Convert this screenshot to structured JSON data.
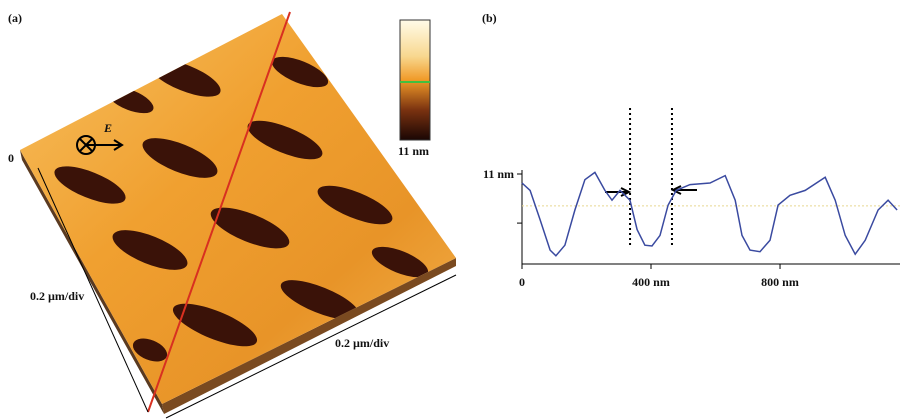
{
  "panel_a": {
    "label": "(a)",
    "colorbar_label": "11 nm",
    "axis_zero": "0",
    "field_label": "E",
    "scale_left": "0.2 µm/div",
    "scale_right": "0.2 µm/div"
  },
  "chart_data": {
    "type": "line",
    "panel_label": "(b)",
    "x": [
      0,
      25,
      56,
      87,
      105,
      133,
      164,
      195,
      226,
      257,
      279,
      304,
      335,
      357,
      381,
      403,
      428,
      453,
      478,
      521,
      583,
      630,
      661,
      682,
      707,
      738,
      769,
      794,
      831,
      878,
      940,
      971,
      1002,
      1033,
      1064,
      1104,
      1135,
      1163
    ],
    "series": [
      {
        "color": "#3a4aa0",
        "values": [
          9.9,
          9.0,
          5.4,
          1.7,
          1.0,
          2.3,
          6.6,
          10.3,
          11.2,
          9.0,
          7.8,
          9.0,
          7.8,
          4.2,
          2.3,
          2.2,
          3.5,
          7.2,
          9.0,
          9.7,
          9.9,
          10.8,
          7.8,
          3.5,
          1.7,
          1.5,
          2.9,
          7.2,
          8.4,
          9.0,
          10.6,
          7.8,
          3.5,
          1.2,
          2.9,
          6.6,
          7.8,
          6.6
        ]
      }
    ],
    "xlim": [
      0,
      1172
    ],
    "ylim": [
      0,
      11.5
    ],
    "xticks": [
      0,
      {
        "value": 400,
        "label": "400 nm"
      },
      {
        "value": 800,
        "label": "800 nm"
      }
    ],
    "yticks": [
      {
        "value": 11,
        "label": "11 nm"
      }
    ],
    "minor_yticks": [
      5
    ],
    "reference_line": 7.1,
    "markers": [
      335,
      465
    ]
  }
}
